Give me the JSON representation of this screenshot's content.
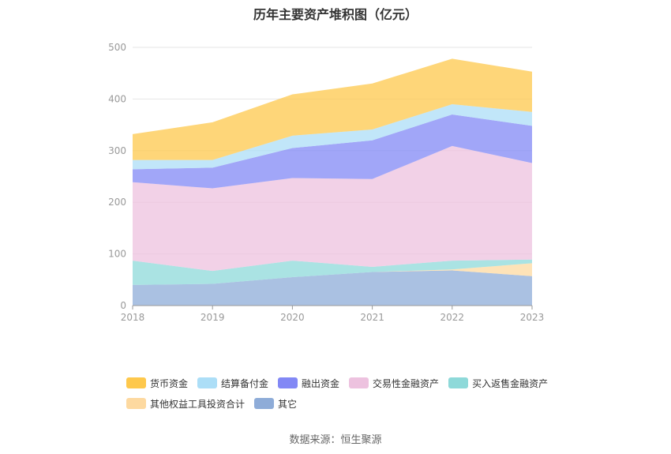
{
  "chart_data": {
    "type": "area",
    "stacked": true,
    "title": "历年主要资产堆积图（亿元）",
    "x": [
      "2018",
      "2019",
      "2020",
      "2021",
      "2022",
      "2023"
    ],
    "ylim": [
      0,
      500
    ],
    "yticks": [
      "0",
      "100",
      "200",
      "300",
      "400",
      "500"
    ],
    "grid": true,
    "legend_position": "bottom",
    "series": [
      {
        "name": "其它",
        "color": "#8eacd8",
        "values": [
          40,
          42,
          55,
          65,
          68,
          57
        ]
      },
      {
        "name": "其他权益工具投资合计",
        "color": "#fdd9a0",
        "values": [
          0,
          0,
          0,
          0,
          2,
          25
        ]
      },
      {
        "name": "买入返售金融资产",
        "color": "#8ed9d9",
        "values": [
          47,
          25,
          32,
          10,
          17,
          7
        ]
      },
      {
        "name": "交易性金融资产",
        "color": "#edc2df",
        "values": [
          152,
          160,
          160,
          170,
          222,
          187
        ]
      },
      {
        "name": "融出资金",
        "color": "#8288f5",
        "values": [
          25,
          40,
          58,
          75,
          61,
          72
        ]
      },
      {
        "name": "结算备付金",
        "color": "#acdef7",
        "values": [
          18,
          15,
          24,
          21,
          20,
          27
        ]
      },
      {
        "name": "货币资金",
        "color": "#fec84c",
        "values": [
          50,
          73,
          80,
          89,
          88,
          78
        ]
      }
    ]
  },
  "legend_order": [
    [
      "货币资金",
      "结算备付金",
      "融出资金",
      "交易性金融资产",
      "买入返售金融资产"
    ],
    [
      "其他权益工具投资合计",
      "其它"
    ]
  ],
  "source": "数据来源：恒生聚源"
}
